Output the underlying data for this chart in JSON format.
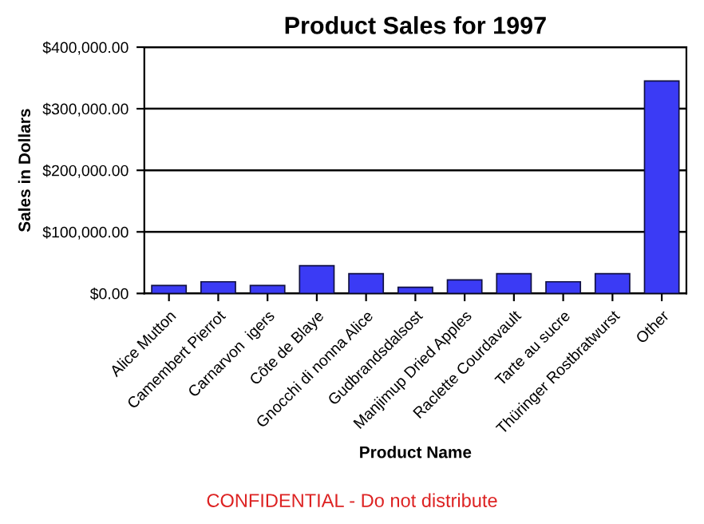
{
  "chart_data": {
    "type": "bar",
    "title": "Product Sales for 1997",
    "xlabel": "Product Name",
    "ylabel": "Sales in Dollars",
    "categories": [
      "Alice Mutton",
      "Camembert Pierrot",
      "Carnarvon  igers",
      "Côte de Blaye",
      "Gnocchi di nonna Alice",
      "Gudbrandsdalsost",
      "Manjimup Dried Apples",
      "Raclette Courdavault",
      "Tarte au sucre",
      "Thüringer Rostbratwurst",
      "Other"
    ],
    "values": [
      13000,
      19000,
      13000,
      45000,
      32000,
      10000,
      22000,
      32000,
      19000,
      32000,
      345000
    ],
    "color": "#3b3bf5",
    "ylim": [
      0,
      400000
    ],
    "yticks": [
      {
        "value": 0,
        "label": "$0.00"
      },
      {
        "value": 100000,
        "label": "$100,000.00"
      },
      {
        "value": 200000,
        "label": "$200,000.00"
      },
      {
        "value": 300000,
        "label": "$300,000.00"
      },
      {
        "value": 400000,
        "label": "$400,000.00"
      }
    ],
    "grid": "y",
    "annotations": [
      "CONFIDENTIAL - Do not distribute"
    ]
  }
}
